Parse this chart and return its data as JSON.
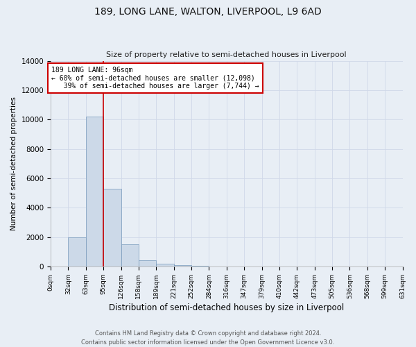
{
  "title": "189, LONG LANE, WALTON, LIVERPOOL, L9 6AD",
  "subtitle": "Size of property relative to semi-detached houses in Liverpool",
  "xlabel": "Distribution of semi-detached houses by size in Liverpool",
  "ylabel": "Number of semi-detached properties",
  "bin_labels": [
    "0sqm",
    "32sqm",
    "63sqm",
    "95sqm",
    "126sqm",
    "158sqm",
    "189sqm",
    "221sqm",
    "252sqm",
    "284sqm",
    "316sqm",
    "347sqm",
    "379sqm",
    "410sqm",
    "442sqm",
    "473sqm",
    "505sqm",
    "536sqm",
    "568sqm",
    "599sqm",
    "631sqm"
  ],
  "bar_values": [
    0,
    1980,
    10200,
    5300,
    1500,
    420,
    180,
    80,
    40,
    20,
    15,
    10,
    5,
    3,
    2,
    1,
    1,
    0,
    0,
    0
  ],
  "bar_color": "#ccd9e8",
  "bar_edge_color": "#7799bb",
  "grid_color": "#d0d8e8",
  "background_color": "#e8eef5",
  "property_line_color": "#cc0000",
  "ylim": [
    0,
    14000
  ],
  "yticks": [
    0,
    2000,
    4000,
    6000,
    8000,
    10000,
    12000,
    14000
  ],
  "annotation_box_color": "#ffffff",
  "annotation_border_color": "#cc0000",
  "property_size": 96,
  "smaller_pct": 60,
  "smaller_count": 12098,
  "larger_pct": 39,
  "larger_count": 7744,
  "footer": "Contains HM Land Registry data © Crown copyright and database right 2024.\nContains public sector information licensed under the Open Government Licence v3.0."
}
